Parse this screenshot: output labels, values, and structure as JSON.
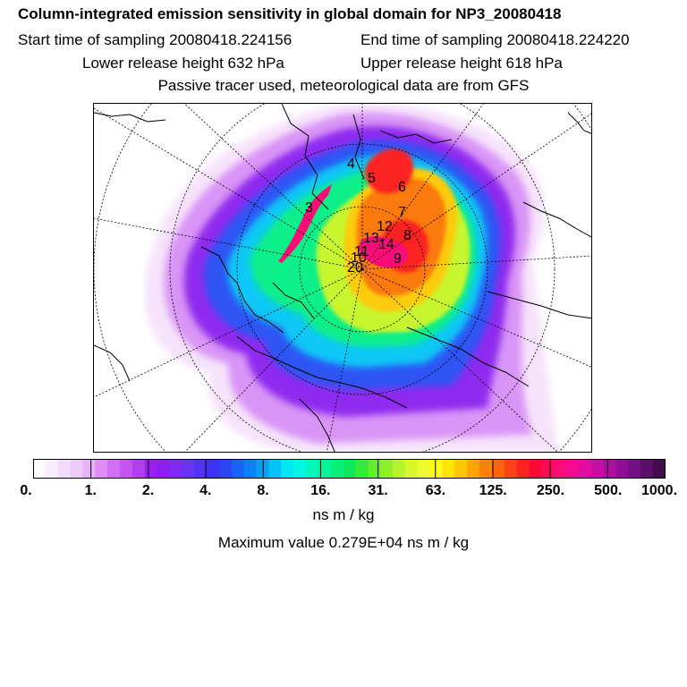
{
  "header": {
    "title": "Column-integrated emission sensitivity in global domain for NP3_20080418",
    "start_sampling": "Start time of sampling 20080418.224156",
    "end_sampling": "End time of sampling 20080418.224220",
    "lower_release": "Lower release height  632 hPa",
    "upper_release": "Upper release height  618 hPa",
    "tracer_note": "Passive tracer used, meteorological data are from GFS"
  },
  "map": {
    "projection": "polar stereographic (north)",
    "markers": [
      "4",
      "5",
      "6",
      "3",
      "7",
      "12",
      "8",
      "13",
      "14",
      "11",
      "10",
      "9",
      "20"
    ]
  },
  "colorbar": {
    "colors": [
      "#fdfbfe",
      "#f8edfd",
      "#f3dcfb",
      "#eecafa",
      "#e9b3fa",
      "#de8cf7",
      "#d16ef3",
      "#c354ef",
      "#b23ded",
      "#9d1ff0",
      "#8e1ef0",
      "#7d2bf2",
      "#6a33f4",
      "#5133f3",
      "#3d33f5",
      "#2d44f5",
      "#1a62f5",
      "#0c80f5",
      "#07a2f6",
      "#04c3f7",
      "#06e5f2",
      "#04f7e1",
      "#03f7bd",
      "#04f49d",
      "#07f07a",
      "#0ee85c",
      "#33ec3a",
      "#62ee2a",
      "#8df029",
      "#b8f42d",
      "#d8f62e",
      "#edfb33",
      "#fdfb1a",
      "#fce406",
      "#fcc506",
      "#fca506",
      "#fb8308",
      "#fb630d",
      "#fb4416",
      "#fb2420",
      "#fb0a35",
      "#fb0c58",
      "#fb0d78",
      "#f50c93",
      "#e10da0",
      "#c70ea4",
      "#ad0fa1",
      "#920e99",
      "#741083",
      "#5a0e68",
      "#420b4d"
    ],
    "tick_labels": [
      "0.",
      "1.",
      "2.",
      "4.",
      "8.",
      "16.",
      "31.",
      "63.",
      "125.",
      "250.",
      "500.",
      "1000."
    ],
    "units": "ns m / kg"
  },
  "max_value": "Maximum value  0.279E+04 ns m / kg"
}
